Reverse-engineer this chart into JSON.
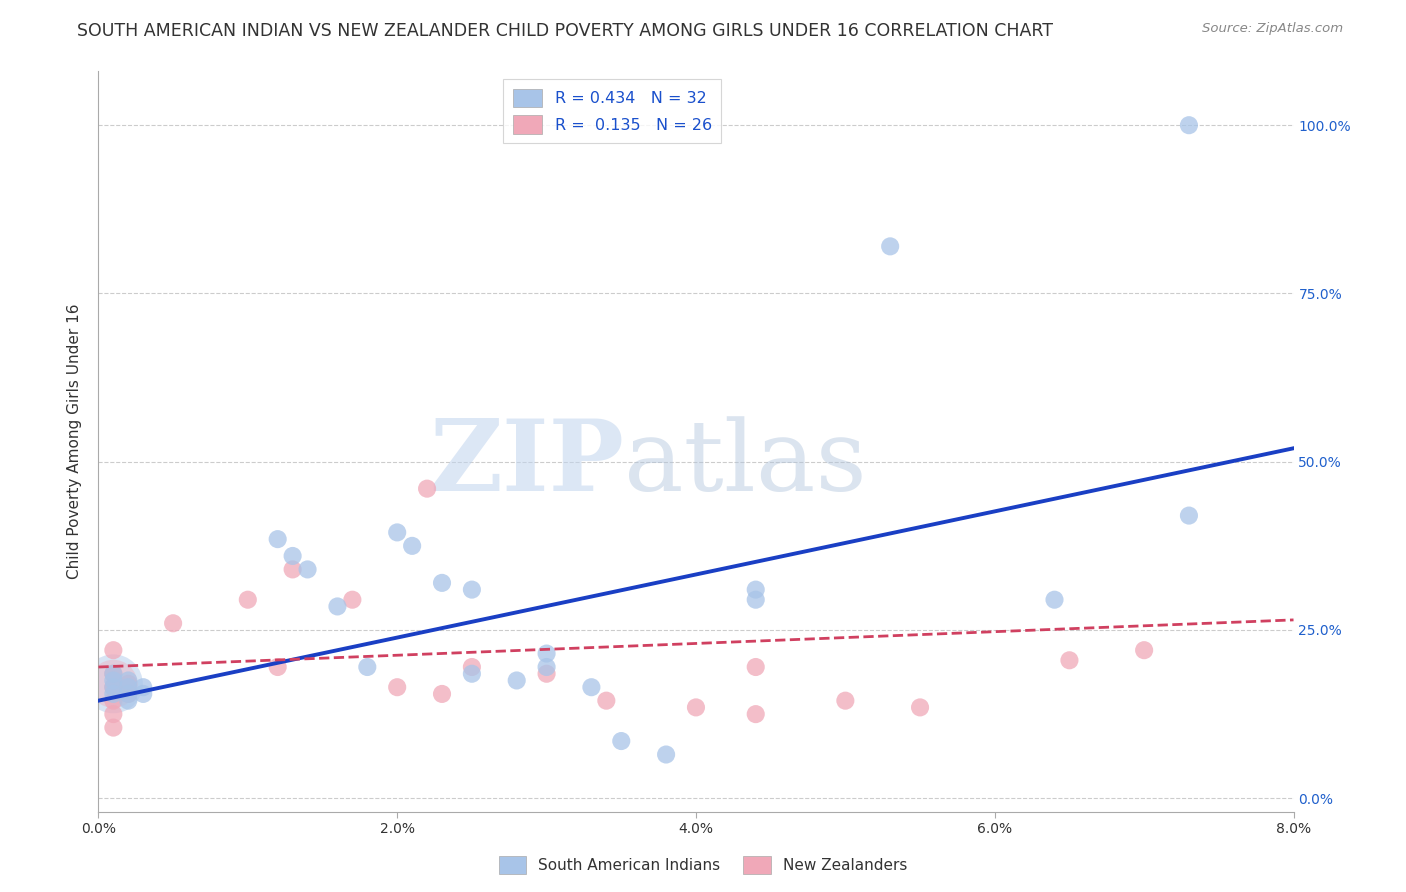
{
  "title": "SOUTH AMERICAN INDIAN VS NEW ZEALANDER CHILD POVERTY AMONG GIRLS UNDER 16 CORRELATION CHART",
  "source": "Source: ZipAtlas.com",
  "ylabel": "Child Poverty Among Girls Under 16",
  "xlim": [
    0.0,
    0.08
  ],
  "ylim": [
    -0.02,
    1.08
  ],
  "yticks": [
    0.0,
    0.25,
    0.5,
    0.75,
    1.0
  ],
  "ytick_labels": [
    "0.0%",
    "25.0%",
    "50.0%",
    "75.0%",
    "100.0%"
  ],
  "xticks": [
    0.0,
    0.02,
    0.04,
    0.06,
    0.08
  ],
  "xtick_labels": [
    "0.0%",
    "2.0%",
    "4.0%",
    "6.0%",
    "8.0%"
  ],
  "blue_R": "0.434",
  "blue_N": "32",
  "pink_R": "0.135",
  "pink_N": "26",
  "blue_color": "#a8c4e8",
  "blue_line_color": "#1a3fc4",
  "pink_color": "#f0a8b8",
  "pink_line_color": "#d04060",
  "blue_scatter": [
    [
      0.001,
      0.185
    ],
    [
      0.001,
      0.175
    ],
    [
      0.001,
      0.165
    ],
    [
      0.001,
      0.155
    ],
    [
      0.002,
      0.175
    ],
    [
      0.002,
      0.165
    ],
    [
      0.002,
      0.155
    ],
    [
      0.002,
      0.145
    ],
    [
      0.003,
      0.165
    ],
    [
      0.003,
      0.155
    ],
    [
      0.012,
      0.385
    ],
    [
      0.013,
      0.36
    ],
    [
      0.014,
      0.34
    ],
    [
      0.016,
      0.285
    ],
    [
      0.018,
      0.195
    ],
    [
      0.02,
      0.395
    ],
    [
      0.021,
      0.375
    ],
    [
      0.023,
      0.32
    ],
    [
      0.025,
      0.31
    ],
    [
      0.025,
      0.185
    ],
    [
      0.028,
      0.175
    ],
    [
      0.03,
      0.215
    ],
    [
      0.03,
      0.195
    ],
    [
      0.033,
      0.165
    ],
    [
      0.035,
      0.085
    ],
    [
      0.038,
      0.065
    ],
    [
      0.044,
      0.31
    ],
    [
      0.044,
      0.295
    ],
    [
      0.053,
      0.82
    ],
    [
      0.064,
      0.295
    ],
    [
      0.073,
      1.0
    ],
    [
      0.073,
      0.42
    ]
  ],
  "pink_scatter": [
    [
      0.001,
      0.22
    ],
    [
      0.001,
      0.185
    ],
    [
      0.001,
      0.165
    ],
    [
      0.001,
      0.145
    ],
    [
      0.001,
      0.125
    ],
    [
      0.001,
      0.105
    ],
    [
      0.002,
      0.17
    ],
    [
      0.002,
      0.155
    ],
    [
      0.005,
      0.26
    ],
    [
      0.01,
      0.295
    ],
    [
      0.012,
      0.195
    ],
    [
      0.013,
      0.34
    ],
    [
      0.017,
      0.295
    ],
    [
      0.02,
      0.165
    ],
    [
      0.022,
      0.46
    ],
    [
      0.023,
      0.155
    ],
    [
      0.025,
      0.195
    ],
    [
      0.03,
      0.185
    ],
    [
      0.034,
      0.145
    ],
    [
      0.04,
      0.135
    ],
    [
      0.044,
      0.195
    ],
    [
      0.044,
      0.125
    ],
    [
      0.05,
      0.145
    ],
    [
      0.055,
      0.135
    ],
    [
      0.065,
      0.205
    ],
    [
      0.07,
      0.22
    ]
  ],
  "blue_trendline": [
    [
      0.0,
      0.145
    ],
    [
      0.08,
      0.52
    ]
  ],
  "pink_trendline": [
    [
      0.0,
      0.195
    ],
    [
      0.08,
      0.265
    ]
  ],
  "watermark_zip": "ZIP",
  "watermark_atlas": "atlas",
  "background_color": "#ffffff",
  "grid_color": "#cccccc",
  "title_fontsize": 12.5,
  "scatter_size": 170,
  "legend_fontsize": 11.5,
  "axis_label_fontsize": 11
}
